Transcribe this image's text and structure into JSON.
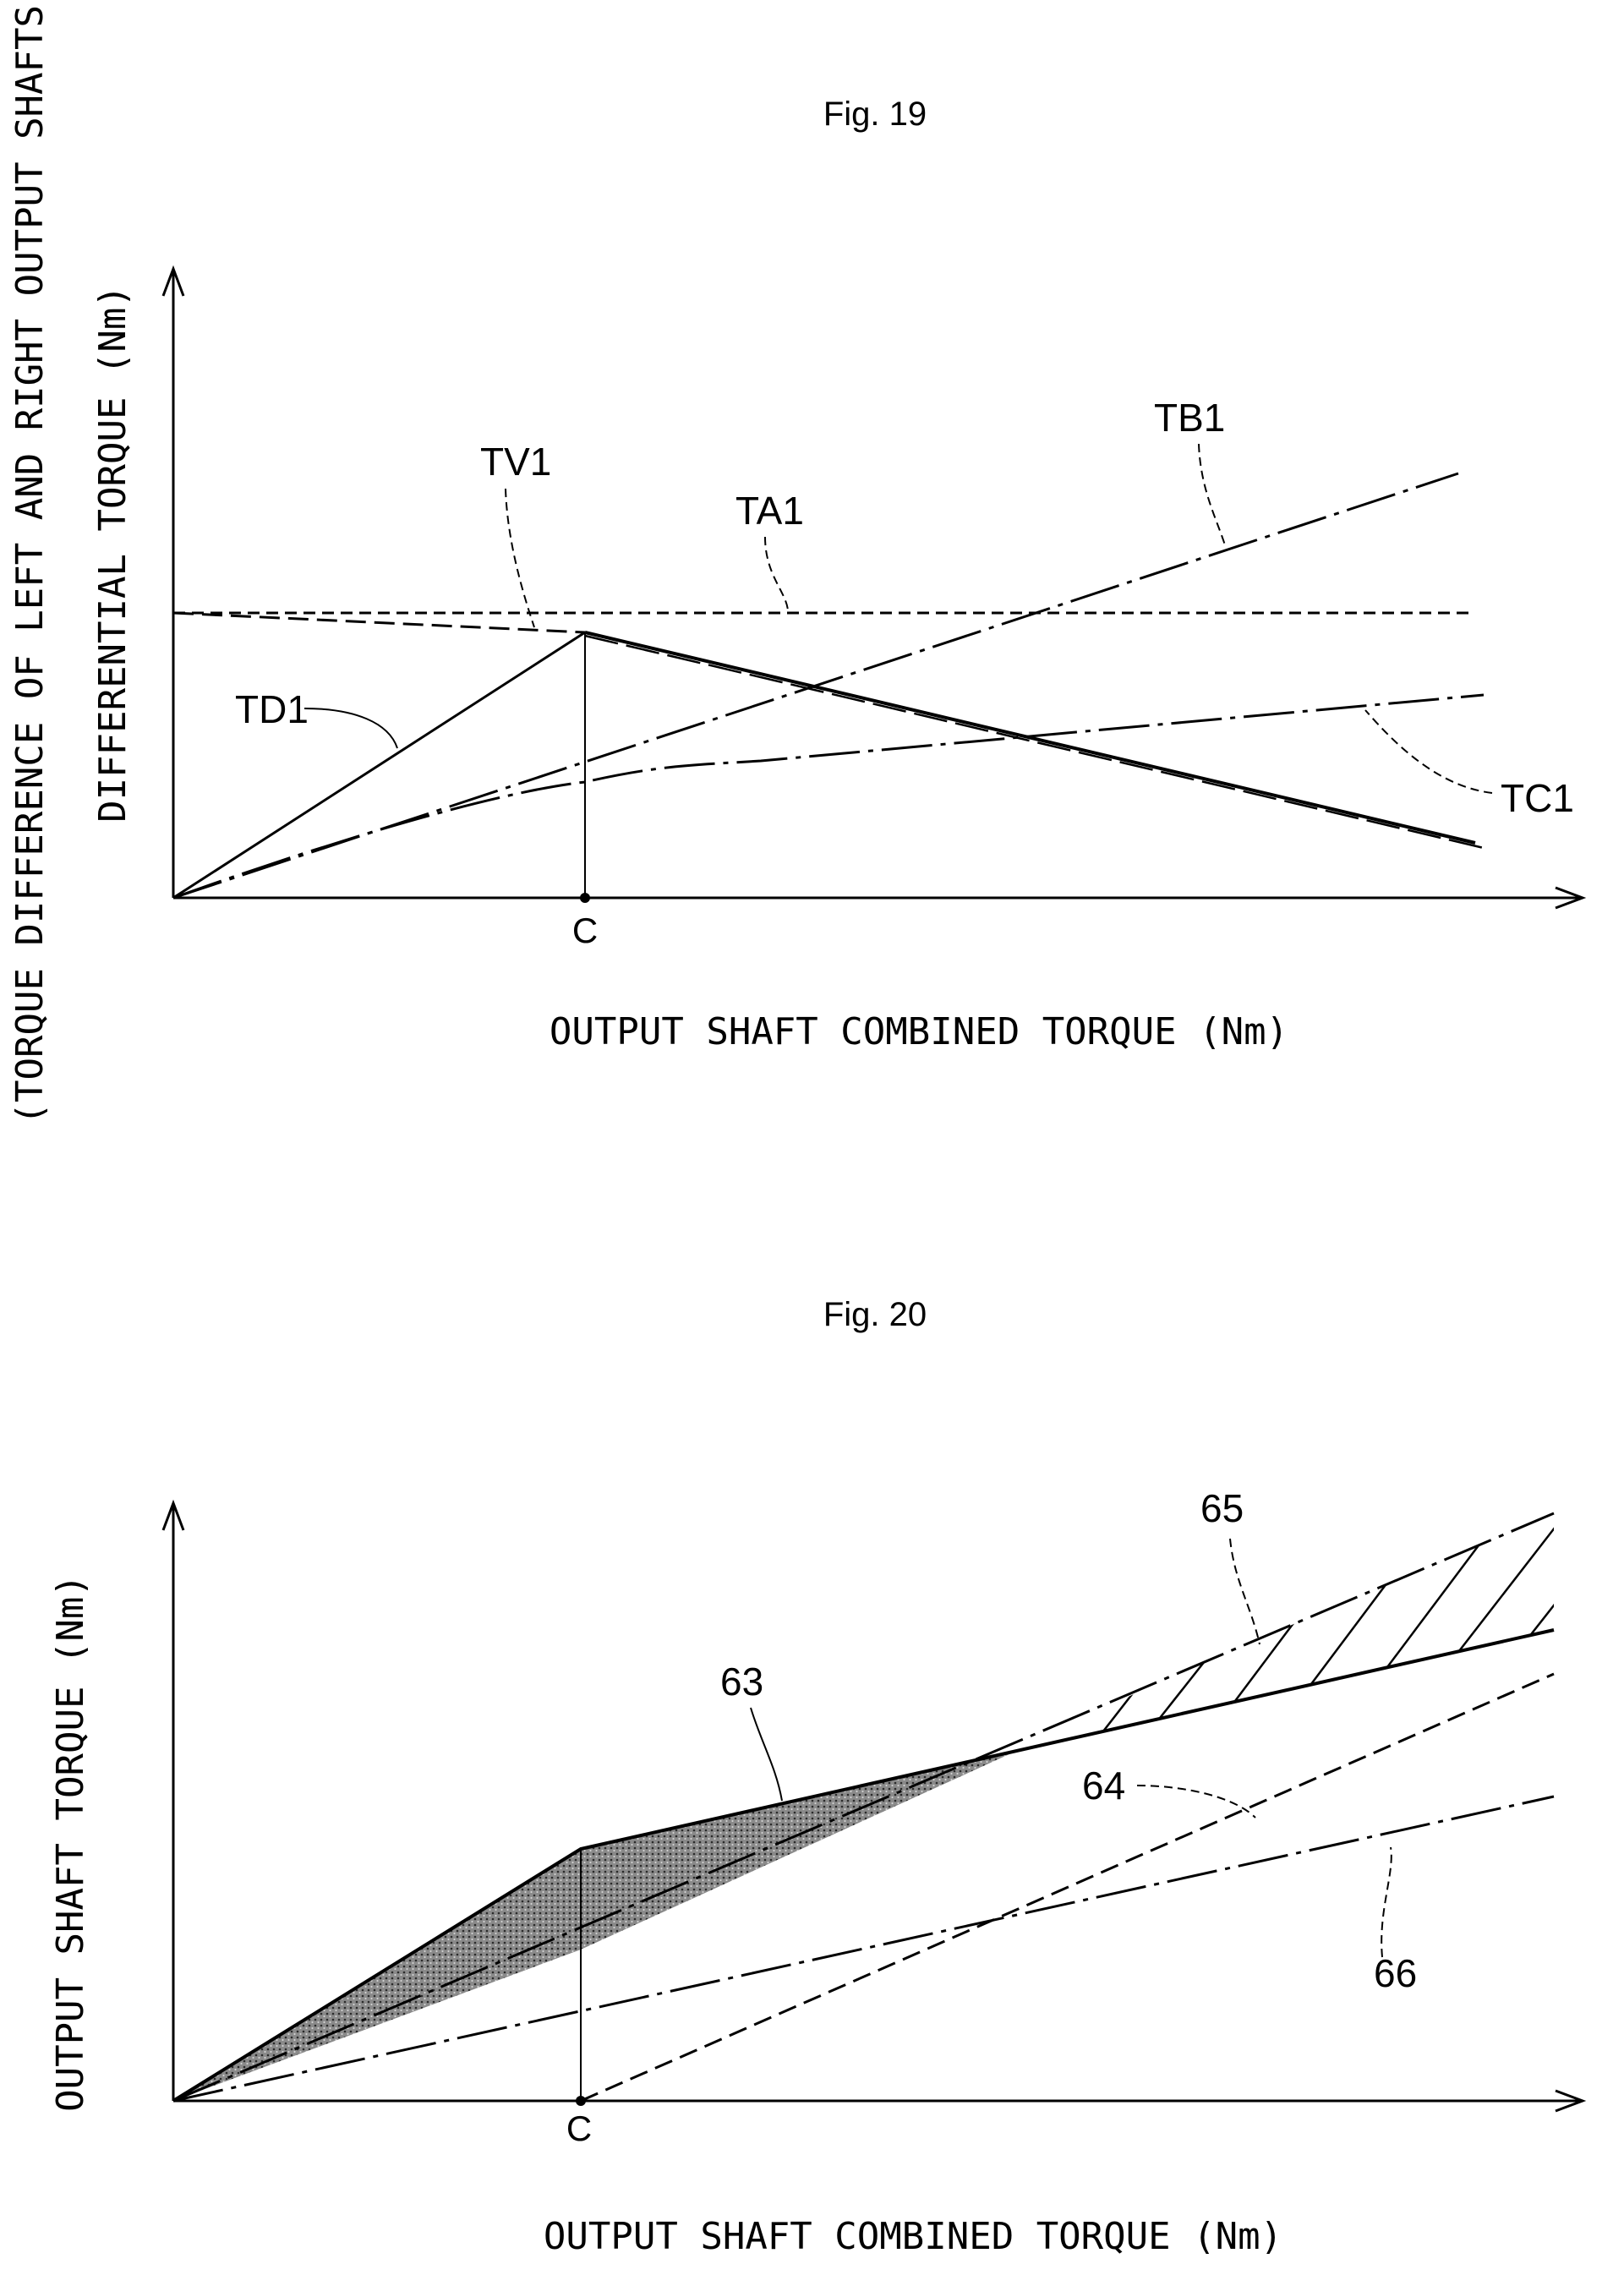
{
  "fig19": {
    "title": "Fig. 19",
    "ylabel_outer": "(TORQUE DIFFERENCE OF LEFT AND RIGHT OUTPUT SHAFTS)",
    "ylabel_inner": "DIFFERENTIAL TORQUE (Nm)",
    "xlabel": "OUTPUT SHAFT COMBINED TORQUE (Nm)",
    "tick_c": "C",
    "labels": {
      "tv1": "TV1",
      "ta1": "TA1",
      "tb1": "TB1",
      "td1": "TD1",
      "tc1": "TC1"
    }
  },
  "fig20": {
    "title": "Fig. 20",
    "ylabel": "OUTPUT SHAFT TORQUE (Nm)",
    "xlabel": "OUTPUT SHAFT COMBINED TORQUE (Nm)",
    "tick_c": "C",
    "labels": {
      "l63": "63",
      "l64": "64",
      "l65": "65",
      "l66": "66"
    }
  }
}
